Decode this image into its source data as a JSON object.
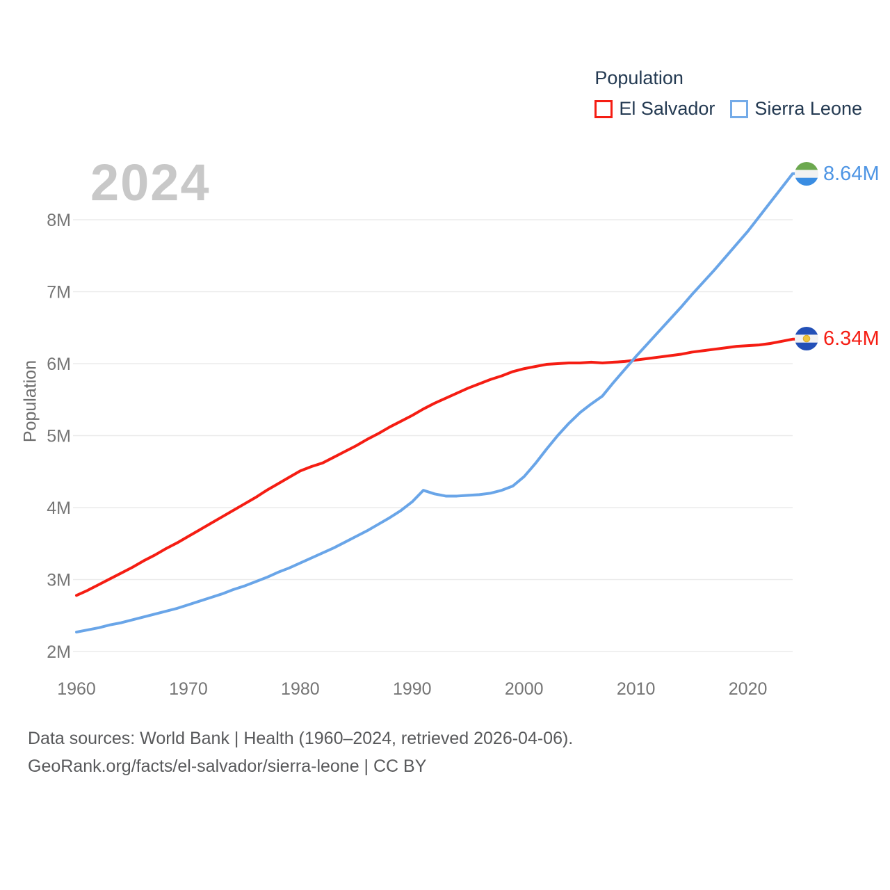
{
  "watermark": "2024",
  "colors": {
    "el_salvador": "#f51d13",
    "sierra_leone": "#69a5e8",
    "sierra_leone_text": "#4e95e4",
    "grid": "#ebebeb",
    "tick_text": "#757575"
  },
  "legend": {
    "title": "Population",
    "series": [
      {
        "label": "El Salvador",
        "color": "#f51d13"
      },
      {
        "label": "Sierra Leone",
        "color": "#74abe8"
      }
    ]
  },
  "end_labels": {
    "sierra_leone": "8.64M",
    "el_salvador": "6.34M"
  },
  "footer": {
    "line1": "Data sources: World Bank | Health (1960–2024, retrieved 2026-04-06).",
    "line2": "GeoRank.org/facts/el-salvador/sierra-leone | CC BY"
  },
  "chart_data": {
    "type": "line",
    "title": "Population",
    "xlabel": "",
    "ylabel": "Population",
    "xlim": [
      1960,
      2024
    ],
    "ylim": [
      2,
      8.8
    ],
    "grid": "horizontal",
    "legend_position": "top-right",
    "x": [
      1960,
      1961,
      1962,
      1963,
      1964,
      1965,
      1966,
      1967,
      1968,
      1969,
      1970,
      1971,
      1972,
      1973,
      1974,
      1975,
      1976,
      1977,
      1978,
      1979,
      1980,
      1981,
      1982,
      1983,
      1984,
      1985,
      1986,
      1987,
      1988,
      1989,
      1990,
      1991,
      1992,
      1993,
      1994,
      1995,
      1996,
      1997,
      1998,
      1999,
      2000,
      2001,
      2002,
      2003,
      2004,
      2005,
      2006,
      2007,
      2008,
      2009,
      2010,
      2011,
      2012,
      2013,
      2014,
      2015,
      2016,
      2017,
      2018,
      2019,
      2020,
      2021,
      2022,
      2023,
      2024
    ],
    "series": [
      {
        "name": "El Salvador",
        "color": "#f51d13",
        "end_label": "6.34M",
        "values": [
          2.78,
          2.85,
          2.93,
          3.01,
          3.09,
          3.17,
          3.26,
          3.34,
          3.43,
          3.51,
          3.6,
          3.69,
          3.78,
          3.87,
          3.96,
          4.05,
          4.14,
          4.24,
          4.33,
          4.42,
          4.51,
          4.57,
          4.62,
          4.7,
          4.78,
          4.86,
          4.95,
          5.03,
          5.12,
          5.2,
          5.28,
          5.37,
          5.45,
          5.52,
          5.59,
          5.66,
          5.72,
          5.78,
          5.83,
          5.89,
          5.93,
          5.96,
          5.99,
          6.0,
          6.01,
          6.01,
          6.02,
          6.01,
          6.02,
          6.03,
          6.05,
          6.07,
          6.09,
          6.11,
          6.13,
          6.16,
          6.18,
          6.2,
          6.22,
          6.24,
          6.25,
          6.26,
          6.28,
          6.31,
          6.34
        ]
      },
      {
        "name": "Sierra Leone",
        "color": "#69a5e8",
        "end_label": "8.64M",
        "values": [
          2.27,
          2.3,
          2.33,
          2.37,
          2.4,
          2.44,
          2.48,
          2.52,
          2.56,
          2.6,
          2.65,
          2.7,
          2.75,
          2.8,
          2.86,
          2.91,
          2.97,
          3.03,
          3.1,
          3.16,
          3.23,
          3.3,
          3.37,
          3.44,
          3.52,
          3.6,
          3.68,
          3.77,
          3.86,
          3.96,
          4.08,
          4.24,
          4.19,
          4.16,
          4.16,
          4.17,
          4.18,
          4.2,
          4.24,
          4.3,
          4.43,
          4.61,
          4.81,
          5.0,
          5.17,
          5.32,
          5.44,
          5.55,
          5.74,
          5.92,
          6.1,
          6.27,
          6.44,
          6.61,
          6.78,
          6.96,
          7.13,
          7.3,
          7.48,
          7.66,
          7.84,
          8.04,
          8.24,
          8.44,
          8.64
        ]
      }
    ],
    "yticks": [
      {
        "value": 2,
        "label": "2M"
      },
      {
        "value": 3,
        "label": "3M"
      },
      {
        "value": 4,
        "label": "4M"
      },
      {
        "value": 5,
        "label": "5M"
      },
      {
        "value": 6,
        "label": "6M"
      },
      {
        "value": 7,
        "label": "7M"
      },
      {
        "value": 8,
        "label": "8M"
      }
    ],
    "xticks": [
      {
        "value": 1960,
        "label": "1960"
      },
      {
        "value": 1970,
        "label": "1970"
      },
      {
        "value": 1980,
        "label": "1980"
      },
      {
        "value": 1990,
        "label": "1990"
      },
      {
        "value": 2000,
        "label": "2000"
      },
      {
        "value": 2010,
        "label": "2010"
      },
      {
        "value": 2020,
        "label": "2020"
      }
    ]
  }
}
